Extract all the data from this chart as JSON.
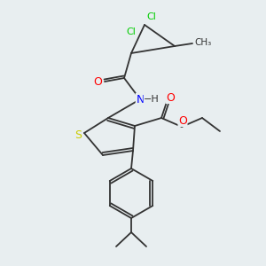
{
  "bg_color": "#e8eef0",
  "atom_colors": {
    "S": "#cccc00",
    "N": "#0000ff",
    "O": "#ff0000",
    "Cl": "#00cc00",
    "C": "#333333",
    "H": "#333333"
  },
  "bond_color": "#333333",
  "lw": 1.3
}
